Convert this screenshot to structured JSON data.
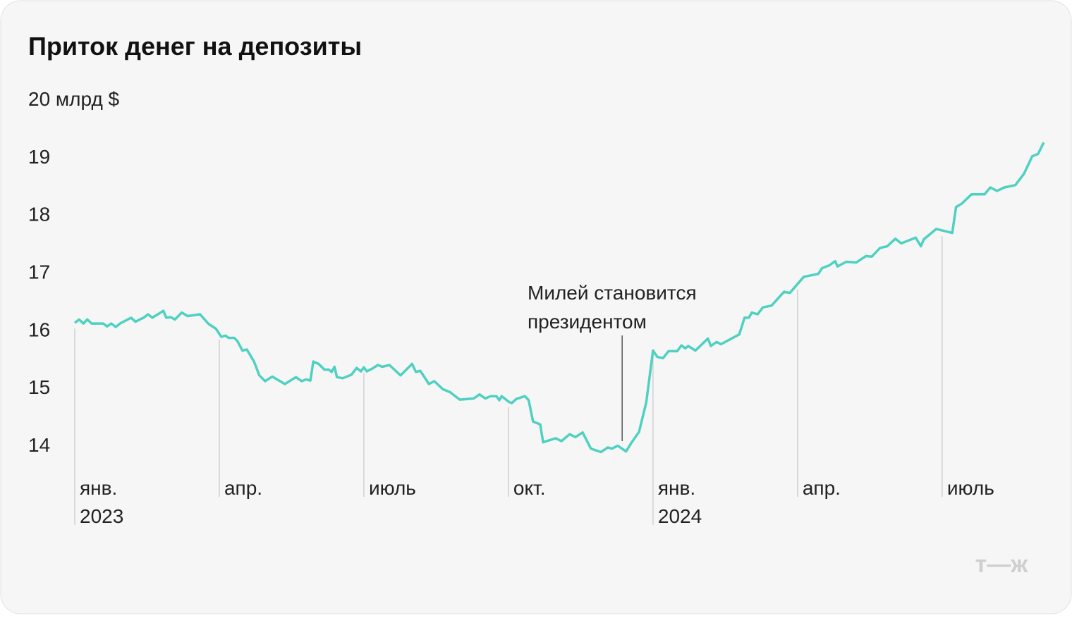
{
  "chart_data": {
    "type": "line",
    "title": "Приток денег на депозиты",
    "x": [
      0,
      0.09,
      0.18,
      0.26,
      0.35,
      0.59,
      0.67,
      0.76,
      0.85,
      0.94,
      1.17,
      1.26,
      1.35,
      1.43,
      1.52,
      1.61,
      1.84,
      1.9,
      1.99,
      2.08,
      2.22,
      2.34,
      2.6,
      2.78,
      2.93,
      3.04,
      3.13,
      3.19,
      3.31,
      3.37,
      3.48,
      3.57,
      3.72,
      3.83,
      3.95,
      4.1,
      4.36,
      4.59,
      4.71,
      4.8,
      4.89,
      4.95,
      5.06,
      5.18,
      5.27,
      5.33,
      5.39,
      5.44,
      5.56,
      5.74,
      5.85,
      5.94,
      6,
      6.06,
      6.18,
      6.29,
      6.38,
      6.53,
      6.76,
      7,
      7.08,
      7.17,
      7.35,
      7.46,
      7.64,
      7.79,
      7.99,
      8.28,
      8.4,
      8.52,
      8.63,
      8.75,
      8.81,
      8.86,
      9.01,
      9.07,
      9.16,
      9.34,
      9.42,
      9.51,
      9.66,
      9.72,
      9.98,
      10.1,
      10.27,
      10.39,
      10.54,
      10.71,
      10.92,
      11.06,
      11.15,
      11.27,
      11.44,
      11.56,
      11.71,
      11.86,
      12,
      12.09,
      12.21,
      12.32,
      12.5,
      12.59,
      12.67,
      12.73,
      12.88,
      13.14,
      13.2,
      13.32,
      13.41,
      13.79,
      13.9,
      13.99,
      14.05,
      14.17,
      14.28,
      14.46,
      14.72,
      14.84,
      15.13,
      15.43,
      15.51,
      15.66,
      15.78,
      15.83,
      16.01,
      16.22,
      16.42,
      16.54,
      16.71,
      16.86,
      17.03,
      17.15,
      17.45,
      17.56,
      17.62,
      17.88,
      18.21,
      18.29,
      18.41,
      18.61,
      18.88,
      19,
      19.14,
      19.29,
      19.52,
      19.7,
      19.87,
      19.99,
      20.11
    ],
    "series": [
      {
        "color": "#4fd1c1",
        "values": [
          16.11,
          16.17,
          16.1,
          16.17,
          16.1,
          16.1,
          16.05,
          16.1,
          16.04,
          16.1,
          16.2,
          16.13,
          16.17,
          16.2,
          16.26,
          16.2,
          16.32,
          16.2,
          16.21,
          16.17,
          16.29,
          16.23,
          16.26,
          16.09,
          16.01,
          15.87,
          15.89,
          15.85,
          15.85,
          15.8,
          15.63,
          15.65,
          15.44,
          15.2,
          15.1,
          15.18,
          15.05,
          15.17,
          15.1,
          15.13,
          15.11,
          15.44,
          15.4,
          15.3,
          15.3,
          15.26,
          15.35,
          15.17,
          15.15,
          15.21,
          15.33,
          15.27,
          15.34,
          15.27,
          15.32,
          15.38,
          15.35,
          15.38,
          15.2,
          15.4,
          15.26,
          15.28,
          15.05,
          15.1,
          14.96,
          14.91,
          14.78,
          14.8,
          14.87,
          14.8,
          14.84,
          14.84,
          14.77,
          14.84,
          14.74,
          14.72,
          14.79,
          14.84,
          14.77,
          14.4,
          14.35,
          14.04,
          14.11,
          14.06,
          14.18,
          14.13,
          14.21,
          13.93,
          13.87,
          13.95,
          13.93,
          13.98,
          13.88,
          14.04,
          14.22,
          14.73,
          15.63,
          15.52,
          15.5,
          15.62,
          15.62,
          15.72,
          15.67,
          15.71,
          15.63,
          15.84,
          15.71,
          15.78,
          15.74,
          15.91,
          16.2,
          16.2,
          16.29,
          16.26,
          16.38,
          16.41,
          16.65,
          16.63,
          16.91,
          16.96,
          17.06,
          17.11,
          17.18,
          17.09,
          17.17,
          17.16,
          17.27,
          17.26,
          17.41,
          17.44,
          17.57,
          17.49,
          17.59,
          17.44,
          17.56,
          17.74,
          17.67,
          18.12,
          18.18,
          18.34,
          18.34,
          18.46,
          18.4,
          18.46,
          18.5,
          18.7,
          19.0,
          19.04,
          19.24
        ]
      }
    ],
    "xlim": [
      0,
      20.11
    ],
    "xticks": [
      {
        "value": 0,
        "label": "янв. 2023"
      },
      {
        "value": 3,
        "label": "апр."
      },
      {
        "value": 6,
        "label": "июль"
      },
      {
        "value": 9,
        "label": "окт."
      },
      {
        "value": 12,
        "label": "янв. 2024"
      },
      {
        "value": 15,
        "label": "апр."
      },
      {
        "value": 18,
        "label": "июль"
      }
    ],
    "ylim": [
      13.4,
      20
    ],
    "yticks": [
      14,
      15,
      16,
      17,
      18,
      19,
      {
        "value": 20,
        "label": "20 млрд $"
      }
    ],
    "annotation": {
      "x": 11.36,
      "lines": [
        "Милей становится",
        "президентом"
      ]
    },
    "logo": "т—ж"
  }
}
